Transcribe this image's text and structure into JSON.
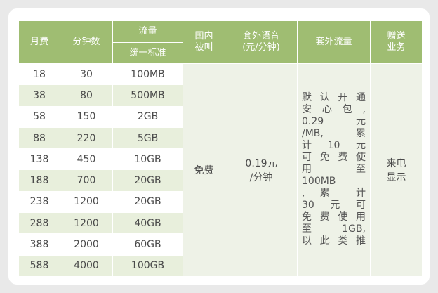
{
  "headers": {
    "monthly_fee": "月费",
    "minutes": "分钟数",
    "data": "流量",
    "data_sub": "统一标准",
    "domestic_calls_l1": "国内",
    "domestic_calls_l2": "被叫",
    "extra_voice_l1": "套外语音",
    "extra_voice_l2": "(元/分钟)",
    "extra_data": "套外流量",
    "bonus_l1": "赠送",
    "bonus_l2": "业务"
  },
  "rows": [
    {
      "fee": "18",
      "minutes": "30",
      "data": "100MB"
    },
    {
      "fee": "38",
      "minutes": "80",
      "data": "500MB"
    },
    {
      "fee": "58",
      "minutes": "150",
      "data": "2GB"
    },
    {
      "fee": "88",
      "minutes": "220",
      "data": "5GB"
    },
    {
      "fee": "138",
      "minutes": "450",
      "data": "10GB"
    },
    {
      "fee": "188",
      "minutes": "700",
      "data": "20GB"
    },
    {
      "fee": "238",
      "minutes": "1200",
      "data": "20GB"
    },
    {
      "fee": "288",
      "minutes": "1200",
      "data": "40GB"
    },
    {
      "fee": "388",
      "minutes": "2000",
      "data": "60GB"
    },
    {
      "fee": "588",
      "minutes": "4000",
      "data": "100GB"
    }
  ],
  "merged": {
    "domestic_calls": "免费",
    "extra_voice_l1": "0.19元",
    "extra_voice_l2": "/分钟",
    "extra_data_lines": [
      "默认开通",
      "安心包,",
      "0.29元",
      "/MB, 累",
      "计10元",
      "可免费使",
      "用 至",
      "100MB",
      ", 累 计",
      "30元可",
      "免费使用",
      "至1GB,",
      "以此类推"
    ],
    "bonus_l1": "来电",
    "bonus_l2": "显示"
  },
  "colors": {
    "header": "#9fbd72",
    "row_alt": "#e8efdc",
    "merged_bg": "#eef2e7"
  }
}
